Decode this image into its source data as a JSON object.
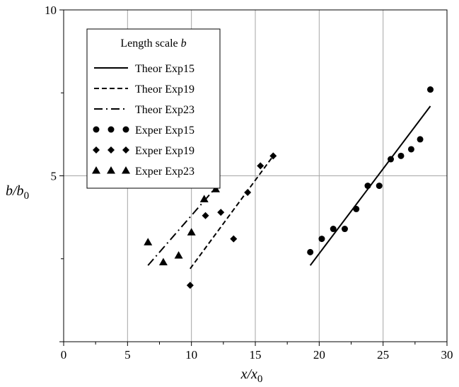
{
  "chart_data": {
    "type": "scatter",
    "xlim": [
      0,
      30
    ],
    "ylim": [
      0,
      10
    ],
    "x_ticks": [
      "0",
      "5",
      "10",
      "15",
      "20",
      "25",
      "30"
    ],
    "y_ticks": [
      "5",
      "10"
    ],
    "grid": true,
    "legend_position": "top-left",
    "xlabel": {
      "main": "x/x",
      "sub": "0"
    },
    "ylabel": {
      "main": "b/b",
      "sub": "0"
    },
    "legend": {
      "title": "Length scale b",
      "entries": [
        {
          "label": "Theor Exp15",
          "marker": "solid-line"
        },
        {
          "label": "Theor Exp19",
          "marker": "dashed-line"
        },
        {
          "label": "Theor Exp23",
          "marker": "dash-dot-line"
        },
        {
          "label": "Exper Exp15",
          "marker": "circle"
        },
        {
          "label": "Exper Exp19",
          "marker": "diamond"
        },
        {
          "label": "Exper Exp23",
          "marker": "triangle"
        }
      ]
    },
    "series": [
      {
        "name": "Theor Exp15",
        "kind": "line",
        "style": "solid",
        "points": [
          [
            19.3,
            2.3
          ],
          [
            28.7,
            7.1
          ]
        ]
      },
      {
        "name": "Theor Exp19",
        "kind": "line",
        "style": "dashed",
        "points": [
          [
            9.9,
            2.2
          ],
          [
            16.4,
            5.6
          ]
        ]
      },
      {
        "name": "Theor Exp23",
        "kind": "line",
        "style": "dashdot",
        "points": [
          [
            6.6,
            2.3
          ],
          [
            11.8,
            4.6
          ]
        ]
      },
      {
        "name": "Exper Exp15",
        "kind": "scatter",
        "marker": "circle",
        "points": [
          [
            19.3,
            2.7
          ],
          [
            20.2,
            3.1
          ],
          [
            21.1,
            3.4
          ],
          [
            22.0,
            3.4
          ],
          [
            22.9,
            4.0
          ],
          [
            23.8,
            4.7
          ],
          [
            24.7,
            4.7
          ],
          [
            25.6,
            5.5
          ],
          [
            26.4,
            5.6
          ],
          [
            27.2,
            5.8
          ],
          [
            27.9,
            6.1
          ],
          [
            28.7,
            7.6
          ]
        ]
      },
      {
        "name": "Exper Exp19",
        "kind": "scatter",
        "marker": "diamond",
        "points": [
          [
            9.9,
            1.7
          ],
          [
            11.1,
            3.8
          ],
          [
            12.3,
            3.9
          ],
          [
            13.3,
            3.1
          ],
          [
            14.4,
            4.5
          ],
          [
            15.4,
            5.3
          ],
          [
            16.4,
            5.6
          ]
        ]
      },
      {
        "name": "Exper Exp23",
        "kind": "scatter",
        "marker": "triangle",
        "points": [
          [
            6.6,
            3.0
          ],
          [
            7.8,
            2.4
          ],
          [
            9.0,
            2.6
          ],
          [
            10.0,
            3.3
          ],
          [
            11.0,
            4.3
          ],
          [
            11.9,
            4.6
          ]
        ]
      }
    ]
  }
}
